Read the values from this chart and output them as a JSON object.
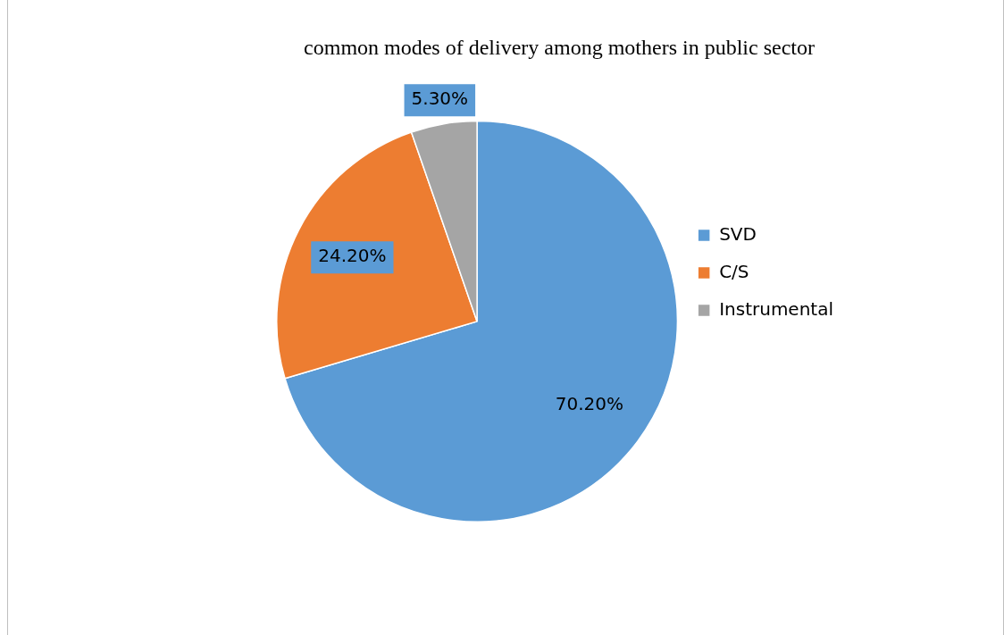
{
  "chart_data": {
    "type": "pie",
    "title": "common modes of delivery among mothers in public sector",
    "categories": [
      "SVD",
      "C/S",
      "Instrumental"
    ],
    "values": [
      70.2,
      24.2,
      5.3
    ],
    "colors": [
      "#5b9bd5",
      "#ed7d31",
      "#a5a5a5"
    ],
    "value_labels": [
      "70.20%",
      "24.20%",
      "5.30%"
    ],
    "legend": "right"
  }
}
